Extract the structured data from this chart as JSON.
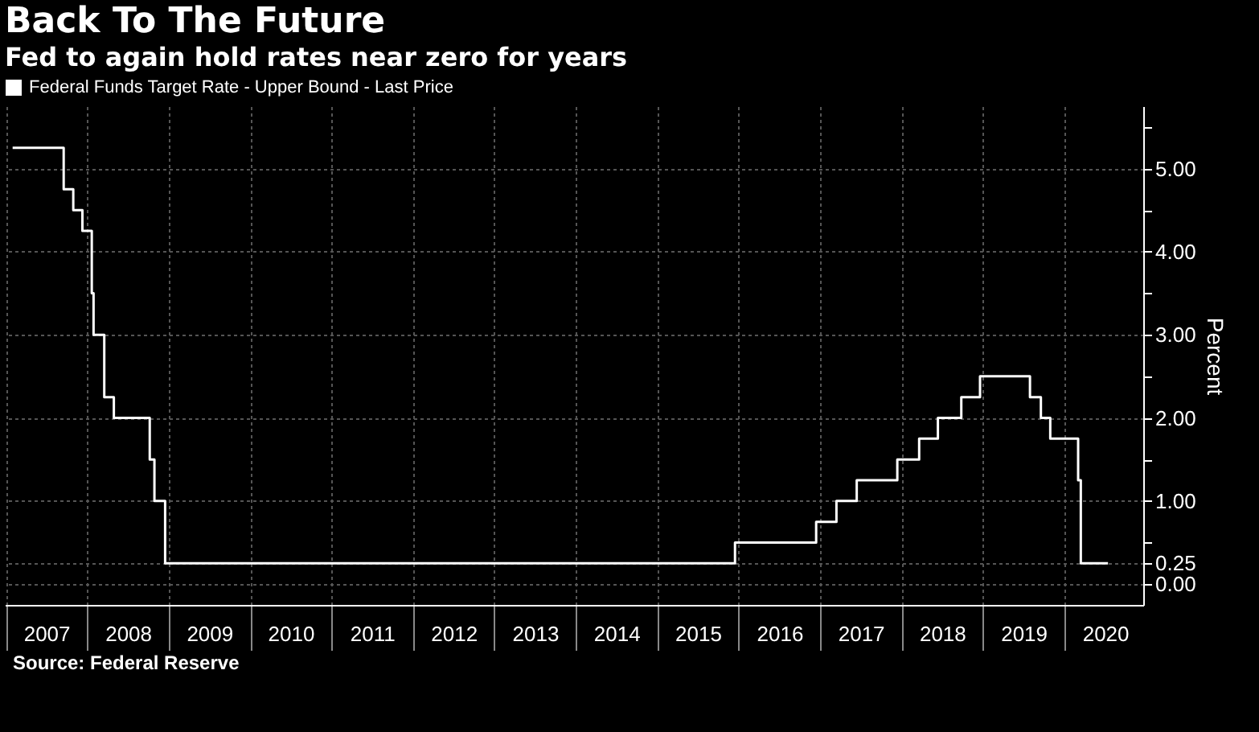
{
  "chart_data": {
    "type": "step",
    "title": "Back To The Future",
    "subtitle": "Fed to again hold rates near zero for years",
    "ylabel": "Percent",
    "x": [
      "2007-02-01",
      "2007-09-18",
      "2007-10-31",
      "2007-12-11",
      "2008-01-22",
      "2008-01-30",
      "2008-03-18",
      "2008-04-30",
      "2008-10-08",
      "2008-10-29",
      "2008-12-16",
      "2015-12-16",
      "2016-12-14",
      "2017-03-15",
      "2017-06-14",
      "2017-12-13",
      "2018-03-21",
      "2018-06-13",
      "2018-09-26",
      "2018-12-19",
      "2019-07-31",
      "2019-09-18",
      "2019-10-30",
      "2020-03-03",
      "2020-03-15",
      "2020-07-15"
    ],
    "series": [
      {
        "name": "Federal Funds Target Rate - Upper Bound - Last Price",
        "color": "#ffffff",
        "values": [
          5.25,
          4.75,
          4.5,
          4.25,
          3.5,
          3.0,
          2.25,
          2.0,
          1.5,
          1.0,
          0.25,
          0.5,
          0.75,
          1.0,
          1.25,
          1.5,
          1.75,
          2.0,
          2.25,
          2.5,
          2.25,
          2.0,
          1.75,
          1.25,
          0.25,
          0.25
        ]
      }
    ],
    "xlim": [
      "2006-12-28",
      "2020-12-20"
    ],
    "xticks": [
      {
        "value": "2007-01-01",
        "label": null
      },
      {
        "value": "2007-07-02",
        "label": "2007"
      },
      {
        "value": "2008-01-01",
        "label": null
      },
      {
        "value": "2008-07-02",
        "label": "2008"
      },
      {
        "value": "2009-01-01",
        "label": null
      },
      {
        "value": "2009-07-02",
        "label": "2009"
      },
      {
        "value": "2010-01-01",
        "label": null
      },
      {
        "value": "2010-07-02",
        "label": "2010"
      },
      {
        "value": "2011-01-01",
        "label": null
      },
      {
        "value": "2011-07-02",
        "label": "2011"
      },
      {
        "value": "2012-01-01",
        "label": null
      },
      {
        "value": "2012-07-02",
        "label": "2012"
      },
      {
        "value": "2013-01-01",
        "label": null
      },
      {
        "value": "2013-07-02",
        "label": "2013"
      },
      {
        "value": "2014-01-01",
        "label": null
      },
      {
        "value": "2014-07-02",
        "label": "2014"
      },
      {
        "value": "2015-01-01",
        "label": null
      },
      {
        "value": "2015-07-02",
        "label": "2015"
      },
      {
        "value": "2016-01-01",
        "label": null
      },
      {
        "value": "2016-07-02",
        "label": "2016"
      },
      {
        "value": "2017-01-01",
        "label": null
      },
      {
        "value": "2017-07-02",
        "label": "2017"
      },
      {
        "value": "2018-01-01",
        "label": null
      },
      {
        "value": "2018-07-02",
        "label": "2018"
      },
      {
        "value": "2019-01-01",
        "label": null
      },
      {
        "value": "2019-07-02",
        "label": "2019"
      },
      {
        "value": "2020-01-01",
        "label": null
      },
      {
        "value": "2020-07-02",
        "label": "2020"
      }
    ],
    "ylim": [
      -0.25,
      5.75
    ],
    "yticks": [
      {
        "value": 0,
        "label": "0.00"
      },
      {
        "value": 0.25,
        "label": "0.25"
      },
      {
        "value": 0.5,
        "label": null
      },
      {
        "value": 1,
        "label": "1.00"
      },
      {
        "value": 1.5,
        "label": null
      },
      {
        "value": 2,
        "label": "2.00"
      },
      {
        "value": 2.5,
        "label": null
      },
      {
        "value": 3,
        "label": "3.00"
      },
      {
        "value": 3.5,
        "label": null
      },
      {
        "value": 4,
        "label": "4.00"
      },
      {
        "value": 4.5,
        "label": null
      },
      {
        "value": 5,
        "label": "5.00"
      },
      {
        "value": 5.5,
        "label": null
      }
    ],
    "grid": true,
    "legend": "top left",
    "line_style": "solid",
    "annotations": [
      "Source: Federal Reserve"
    ]
  }
}
